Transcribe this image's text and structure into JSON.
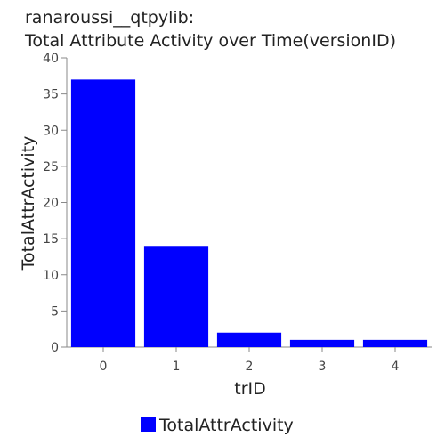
{
  "chart_data": {
    "type": "bar",
    "title": "ranaroussi__qtpylib:",
    "subtitle": "Total Attribute Activity over Time(versionID)",
    "xlabel": "trID",
    "ylabel": "TotalAttrActivity",
    "categories": [
      "0",
      "1",
      "2",
      "3",
      "4"
    ],
    "series": [
      {
        "name": "TotalAttrActivity",
        "values": [
          37,
          14,
          2,
          1,
          1
        ],
        "color": "#0000ff"
      }
    ],
    "ylim": [
      0,
      40
    ],
    "yticks": [
      "0",
      "5",
      "10",
      "15",
      "20",
      "25",
      "30",
      "35",
      "40"
    ],
    "grid": false,
    "legend_position": "bottom"
  }
}
